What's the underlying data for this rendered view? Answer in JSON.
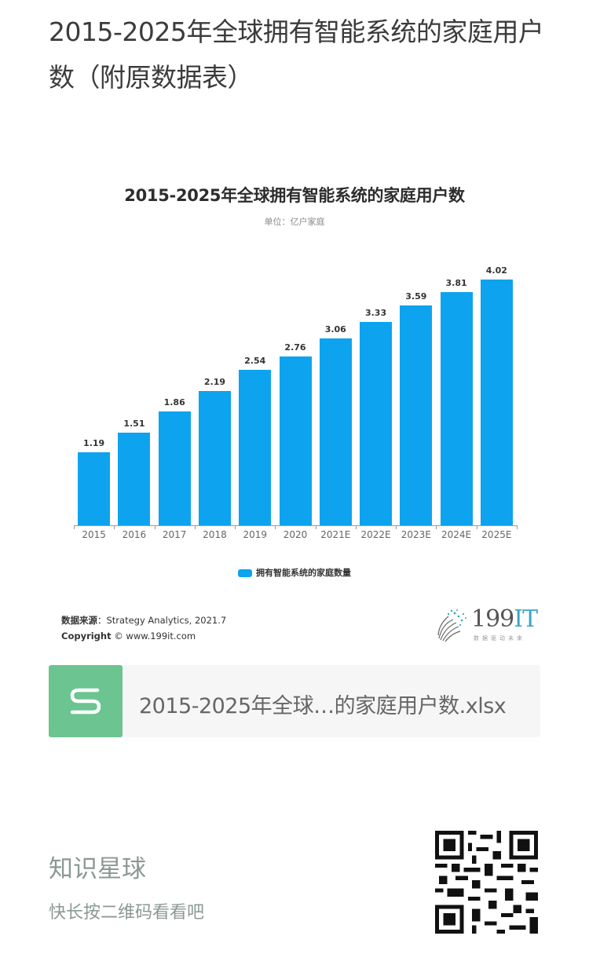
{
  "article": {
    "title": "2015-2025年全球拥有智能系统的家庭用户数（附原数据表）"
  },
  "chart": {
    "title": "2015-2025年全球拥有智能系统的家庭用户数",
    "unit": "单位：亿户家庭",
    "legend": "拥有智能系统的家庭数量",
    "bar_color": "#0ea3ee"
  },
  "chart_data": {
    "type": "bar",
    "title": "2015-2025年全球拥有智能系统的家庭用户数",
    "subtitle": "单位：亿户家庭",
    "categories": [
      "2015",
      "2016",
      "2017",
      "2018",
      "2019",
      "2020",
      "2021E",
      "2022E",
      "2023E",
      "2024E",
      "2025E"
    ],
    "series": [
      {
        "name": "拥有智能系统的家庭数量",
        "values": [
          1.19,
          1.51,
          1.86,
          2.19,
          2.54,
          2.76,
          3.06,
          3.33,
          3.59,
          3.81,
          4.02
        ]
      }
    ],
    "value_labels": [
      "1.19",
      "1.51",
      "1.86",
      "2.19",
      "2.54",
      "2.76",
      "3.06",
      "3.33",
      "3.59",
      "3.81",
      "4.02"
    ],
    "xlabel": "",
    "ylabel": "",
    "ylim": [
      0,
      4.35
    ],
    "grid": false,
    "legend_position": "bottom"
  },
  "source": {
    "label": "数据来源",
    "text": "：Strategy Analytics, 2021.7",
    "copyright_label": "Copyright",
    "copyright_text": " © www.199it.com"
  },
  "logo": {
    "text_main": "199",
    "text_accent": "IT",
    "tagline": "数据驱动未来"
  },
  "attachment": {
    "icon": "spreadsheet-s-icon",
    "icon_color": "#6cc490",
    "file_name": "2015-2025年全球…的家庭用户数.xlsx"
  },
  "footer": {
    "title": "知识星球",
    "subtitle": "快长按二维码看看吧",
    "qr": "qr-code"
  }
}
